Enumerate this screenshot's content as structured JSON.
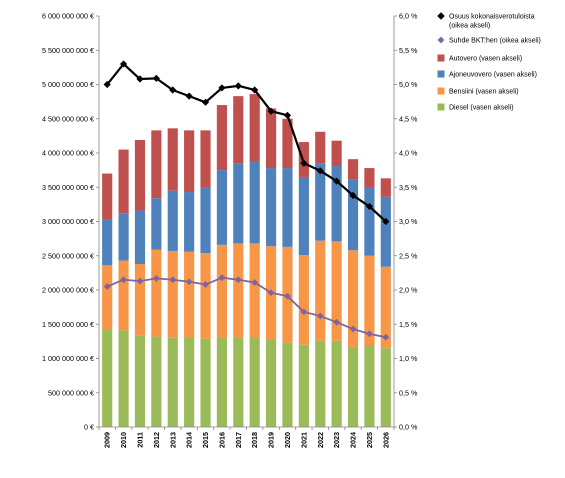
{
  "chart_data": {
    "type": "bar",
    "stacked": true,
    "categories": [
      "2009",
      "2010",
      "2011",
      "2012",
      "2013",
      "2014",
      "2015",
      "2016",
      "2017",
      "2018",
      "2019",
      "2020",
      "2021",
      "2022",
      "2023",
      "2024",
      "2025",
      "2026"
    ],
    "series": [
      {
        "name": "Diesel (vasen akseli)",
        "axis": "left",
        "kind": "bar",
        "color": "#9BBB59",
        "values": [
          1430000000,
          1410000000,
          1340000000,
          1320000000,
          1310000000,
          1300000000,
          1290000000,
          1300000000,
          1310000000,
          1300000000,
          1270000000,
          1230000000,
          1200000000,
          1260000000,
          1260000000,
          1170000000,
          1190000000,
          1150000000
        ]
      },
      {
        "name": "Bensiini (vasen akseli)",
        "axis": "left",
        "kind": "bar",
        "color": "#F79646",
        "values": [
          930000000,
          1020000000,
          1040000000,
          1270000000,
          1260000000,
          1260000000,
          1250000000,
          1360000000,
          1370000000,
          1380000000,
          1370000000,
          1400000000,
          1310000000,
          1460000000,
          1450000000,
          1410000000,
          1310000000,
          1190000000
        ]
      },
      {
        "name": "Ajoneuvovero (vasen akseli)",
        "axis": "left",
        "kind": "bar",
        "color": "#4F81BD",
        "values": [
          670000000,
          690000000,
          780000000,
          750000000,
          880000000,
          870000000,
          950000000,
          1090000000,
          1170000000,
          1190000000,
          1140000000,
          1150000000,
          1140000000,
          1130000000,
          1100000000,
          1030000000,
          990000000,
          1020000000
        ]
      },
      {
        "name": "Autovero (vasen akseli)",
        "axis": "left",
        "kind": "bar",
        "color": "#C0504D",
        "values": [
          670000000,
          930000000,
          1030000000,
          990000000,
          910000000,
          900000000,
          840000000,
          950000000,
          980000000,
          990000000,
          870000000,
          720000000,
          510000000,
          460000000,
          370000000,
          300000000,
          290000000,
          270000000
        ]
      },
      {
        "name": "Osuus kokonaisverotuloista (oikea akseli)",
        "axis": "right",
        "kind": "line",
        "color": "#000000",
        "marker": "diamond",
        "values": [
          5.0,
          5.3,
          5.08,
          5.09,
          4.92,
          4.83,
          4.74,
          4.95,
          4.98,
          4.92,
          4.61,
          4.55,
          3.85,
          3.74,
          3.59,
          3.38,
          3.22,
          3.0
        ]
      },
      {
        "name": "Suhde BKT:hen (oikea akseli)",
        "axis": "right",
        "kind": "line",
        "color": "#8064A2",
        "marker": "diamond",
        "values": [
          2.05,
          2.15,
          2.13,
          2.17,
          2.15,
          2.12,
          2.08,
          2.18,
          2.15,
          2.11,
          1.96,
          1.91,
          1.68,
          1.62,
          1.53,
          1.43,
          1.36,
          1.31
        ]
      }
    ],
    "y_left": {
      "range": [
        0,
        6000000000
      ],
      "tick_labels": [
        "0 €",
        "500 000 000 €",
        "1 000 000 000 €",
        "1 500 000 000 €",
        "2 000 000 000 €",
        "2 500 000 000 €",
        "3 000 000 000 €",
        "3 500 000 000 €",
        "4 000 000 000 €",
        "4 500 000 000 €",
        "5 000 000 000 €",
        "5 500 000 000 €",
        "6 000 000 000 €"
      ]
    },
    "y_right": {
      "range": [
        0,
        6.0
      ],
      "tick_labels": [
        "0,0 %",
        "0,5 %",
        "1,0 %",
        "1,5 %",
        "2,0 %",
        "2,5 %",
        "3,0 %",
        "3,5 %",
        "4,0 %",
        "4,5 %",
        "5,0 %",
        "5,5 %",
        "6,0 %"
      ]
    },
    "xlabel": "",
    "ylabel": "",
    "title": "",
    "grid": false,
    "legend_position": "right",
    "legend": [
      {
        "label": "Osuus kokonaisverotuloista (oikea akseli)",
        "lines": [
          "Osuus kokonaisverotuloista",
          "(oikea akseli)"
        ],
        "marker": "diamond",
        "color": "#000000"
      },
      {
        "label": "Suhde BKT:hen (oikea akseli)",
        "lines": [
          "Suhde BKT:hen (oikea akseli)"
        ],
        "marker": "diamond",
        "color": "#8064A2"
      },
      {
        "label": "Autovero (vasen akseli)",
        "lines": [
          "Autovero (vasen akseli)"
        ],
        "marker": "square",
        "color": "#C0504D"
      },
      {
        "label": "Ajoneuvovero (vasen akseli)",
        "lines": [
          "Ajoneuvovero (vasen akseli)"
        ],
        "marker": "square",
        "color": "#4F81BD"
      },
      {
        "label": "Bensiini (vasen akseli)",
        "lines": [
          "Bensiini (vasen akseli)"
        ],
        "marker": "square",
        "color": "#F79646"
      },
      {
        "label": "Diesel (vasen akseli)",
        "lines": [
          "Diesel (vasen akseli)"
        ],
        "marker": "square",
        "color": "#9BBB59"
      }
    ]
  }
}
